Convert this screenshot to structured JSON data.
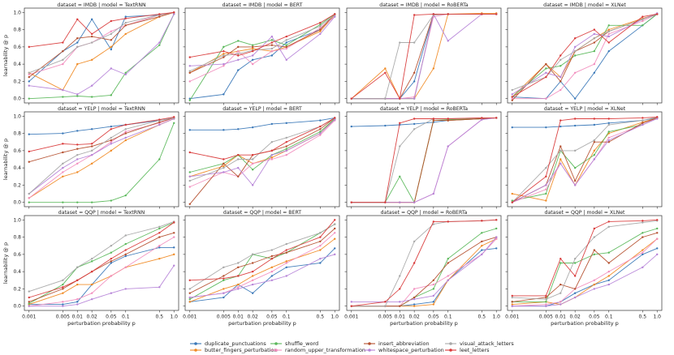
{
  "chart_data": {
    "type": "line",
    "title_template": "dataset = {dataset} | model = {model}",
    "xlabel": "perturbation probability p",
    "ylabel": "learnability @ p",
    "xscale": "log",
    "x": [
      0.001,
      0.005,
      0.01,
      0.02,
      0.05,
      0.1,
      0.5,
      1.0
    ],
    "x_tick_labels": [
      "0.001",
      "0.005",
      "0.01",
      "0.02",
      "0.05",
      "0.1",
      "0.5",
      "1.0"
    ],
    "yticks": [
      0.0,
      0.2,
      0.4,
      0.6,
      0.8,
      1.0
    ],
    "y_tick_labels": [
      "0.0",
      "0.2",
      "0.4",
      "0.6",
      "0.8",
      "1.0"
    ],
    "ylim": [
      -0.05,
      1.05
    ],
    "datasets": [
      "IMDB",
      "YELP",
      "QQP"
    ],
    "models": [
      "TextRNN",
      "BERT",
      "RoBERTa",
      "XLNet"
    ],
    "series_meta": [
      {
        "name": "duplicate_punctuations",
        "color": "#3a78b8"
      },
      {
        "name": "butter_fingers_perturbation",
        "color": "#f08a24"
      },
      {
        "name": "shuffle_word",
        "color": "#5bb85b"
      },
      {
        "name": "random_upper_transformation",
        "color": "#f28fbf"
      },
      {
        "name": "insert_abbreviation",
        "color": "#b5502f"
      },
      {
        "name": "whitespace_perturbation",
        "color": "#b684d8"
      },
      {
        "name": "visual_attack_letters",
        "color": "#a8a8a8"
      },
      {
        "name": "leet_letters",
        "color": "#d93a3a"
      }
    ],
    "panels": [
      {
        "dataset": "IMDB",
        "model": "TextRNN",
        "series": [
          [
            0.2,
            0.55,
            0.65,
            0.92,
            0.57,
            0.95,
            0.97,
            1.0
          ],
          [
            0.3,
            0.1,
            0.4,
            0.45,
            0.6,
            0.75,
            0.95,
            1.0
          ],
          [
            0.0,
            0.02,
            0.03,
            0.02,
            0.04,
            0.3,
            0.62,
            0.98
          ],
          [
            0.28,
            0.4,
            0.6,
            0.65,
            0.78,
            0.85,
            0.97,
            1.0
          ],
          [
            0.25,
            0.55,
            0.7,
            0.72,
            0.68,
            0.85,
            0.95,
            1.0
          ],
          [
            0.15,
            0.1,
            0.05,
            0.15,
            0.35,
            0.28,
            0.65,
            0.98
          ],
          [
            0.3,
            0.45,
            0.6,
            0.65,
            0.75,
            0.88,
            0.97,
            1.0
          ],
          [
            0.6,
            0.65,
            0.92,
            0.75,
            0.9,
            0.93,
            0.98,
            1.0
          ]
        ]
      },
      {
        "dataset": "IMDB",
        "model": "BERT",
        "series": [
          [
            0.0,
            0.05,
            0.33,
            0.45,
            0.5,
            0.65,
            0.8,
            0.98
          ],
          [
            0.3,
            0.52,
            0.55,
            0.58,
            0.55,
            0.6,
            0.78,
            0.97
          ],
          [
            -0.02,
            0.6,
            0.67,
            0.62,
            0.68,
            0.62,
            0.86,
            0.98
          ],
          [
            0.2,
            0.38,
            0.55,
            0.4,
            0.55,
            0.58,
            0.82,
            0.95
          ],
          [
            0.3,
            0.48,
            0.6,
            0.6,
            0.62,
            0.6,
            0.8,
            0.98
          ],
          [
            0.38,
            0.4,
            0.45,
            0.5,
            0.72,
            0.45,
            0.75,
            0.95
          ],
          [
            0.32,
            0.5,
            0.52,
            0.56,
            0.58,
            0.68,
            0.84,
            0.97
          ],
          [
            0.48,
            0.55,
            0.5,
            0.55,
            0.65,
            0.72,
            0.88,
            0.98
          ]
        ]
      },
      {
        "dataset": "IMDB",
        "model": "RoBERTa",
        "series": [
          [
            0.0,
            0.0,
            0.0,
            0.2,
            0.98,
            0.98,
            0.98,
            0.98
          ],
          [
            0.0,
            0.35,
            0.0,
            0.0,
            0.35,
            0.98,
            0.99,
            0.99
          ],
          [
            0.0,
            0.0,
            0.0,
            0.0,
            0.98,
            0.98,
            0.98,
            0.98
          ],
          [
            0.0,
            0.0,
            0.0,
            0.02,
            0.95,
            0.98,
            0.98,
            0.98
          ],
          [
            0.0,
            0.0,
            0.0,
            0.3,
            0.98,
            0.98,
            0.98,
            0.98
          ],
          [
            0.0,
            0.0,
            0.0,
            0.0,
            0.98,
            0.67,
            0.98,
            0.98
          ],
          [
            0.0,
            0.0,
            0.65,
            0.65,
            0.97,
            0.98,
            0.98,
            0.98
          ],
          [
            0.0,
            0.3,
            0.0,
            0.97,
            0.98,
            0.98,
            0.98,
            0.98
          ]
        ]
      },
      {
        "dataset": "IMDB",
        "model": "XLNet",
        "series": [
          [
            0.02,
            0.0,
            0.2,
            0.0,
            0.3,
            0.55,
            0.85,
            0.98
          ],
          [
            0.02,
            0.4,
            0.25,
            0.55,
            0.7,
            0.8,
            0.93,
            0.98
          ],
          [
            0.02,
            0.35,
            0.38,
            0.5,
            0.55,
            0.85,
            0.85,
            0.98
          ],
          [
            0.0,
            0.0,
            0.1,
            0.3,
            0.4,
            0.75,
            0.9,
            0.98
          ],
          [
            -0.02,
            0.4,
            0.2,
            0.55,
            0.65,
            0.78,
            0.92,
            0.98
          ],
          [
            0.05,
            0.3,
            0.25,
            0.6,
            0.75,
            0.72,
            0.92,
            0.99
          ],
          [
            0.1,
            0.25,
            0.45,
            0.55,
            0.7,
            0.78,
            0.92,
            0.98
          ],
          [
            0.02,
            0.25,
            0.5,
            0.7,
            0.8,
            0.65,
            0.95,
            0.98
          ]
        ]
      },
      {
        "dataset": "YELP",
        "model": "TextRNN",
        "series": [
          [
            0.79,
            0.8,
            0.83,
            0.85,
            0.88,
            0.9,
            0.95,
            0.98
          ],
          [
            0.05,
            0.3,
            0.35,
            0.45,
            0.6,
            0.72,
            0.9,
            0.97
          ],
          [
            0.0,
            0.0,
            0.0,
            0.0,
            0.02,
            0.08,
            0.5,
            0.92
          ],
          [
            0.05,
            0.35,
            0.45,
            0.55,
            0.7,
            0.82,
            0.92,
            0.98
          ],
          [
            0.47,
            0.58,
            0.62,
            0.65,
            0.72,
            0.8,
            0.93,
            0.98
          ],
          [
            0.1,
            0.4,
            0.5,
            0.55,
            0.68,
            0.75,
            0.9,
            0.97
          ],
          [
            0.1,
            0.45,
            0.55,
            0.6,
            0.75,
            0.85,
            0.95,
            0.98
          ],
          [
            0.59,
            0.68,
            0.67,
            0.68,
            0.85,
            0.9,
            0.96,
            0.99
          ]
        ]
      },
      {
        "dataset": "YELP",
        "model": "BERT",
        "series": [
          [
            0.84,
            0.84,
            0.85,
            0.87,
            0.91,
            0.92,
            0.95,
            0.98
          ],
          [
            0.3,
            0.42,
            0.55,
            0.45,
            0.52,
            0.6,
            0.8,
            0.97
          ],
          [
            0.35,
            0.45,
            0.55,
            0.38,
            0.55,
            0.62,
            0.82,
            0.97
          ],
          [
            0.18,
            0.35,
            0.3,
            0.45,
            0.5,
            0.55,
            0.78,
            0.95
          ],
          [
            -0.02,
            0.45,
            0.3,
            0.55,
            0.6,
            0.65,
            0.85,
            0.98
          ],
          [
            0.3,
            0.35,
            0.4,
            0.2,
            0.55,
            0.6,
            0.8,
            0.96
          ],
          [
            0.25,
            0.4,
            0.5,
            0.5,
            0.7,
            0.75,
            0.88,
            0.98
          ],
          [
            0.58,
            0.5,
            0.55,
            0.55,
            0.6,
            0.7,
            0.88,
            0.98
          ]
        ]
      },
      {
        "dataset": "YELP",
        "model": "RoBERTa",
        "series": [
          [
            0.88,
            0.89,
            0.9,
            0.91,
            0.93,
            0.95,
            0.97,
            0.98
          ],
          [
            0.0,
            0.0,
            0.0,
            0.0,
            0.95,
            0.95,
            0.97,
            0.98
          ],
          [
            0.0,
            0.0,
            0.3,
            0.0,
            0.95,
            0.96,
            0.97,
            0.98
          ],
          [
            0.0,
            0.0,
            0.0,
            0.0,
            0.1,
            0.65,
            0.96,
            0.98
          ],
          [
            0.0,
            0.0,
            0.0,
            0.0,
            0.95,
            0.95,
            0.97,
            0.98
          ],
          [
            0.0,
            0.0,
            0.0,
            0.0,
            0.1,
            0.65,
            0.96,
            0.98
          ],
          [
            0.0,
            0.0,
            0.65,
            0.85,
            0.97,
            0.97,
            0.98,
            0.98
          ],
          [
            0.0,
            0.0,
            0.92,
            0.97,
            0.97,
            0.97,
            0.98,
            0.98
          ]
        ]
      },
      {
        "dataset": "YELP",
        "model": "XLNet",
        "series": [
          [
            0.87,
            0.87,
            0.88,
            0.89,
            0.9,
            0.92,
            0.95,
            0.98
          ],
          [
            0.1,
            0.02,
            0.5,
            0.2,
            0.6,
            0.8,
            0.93,
            0.98
          ],
          [
            0.02,
            0.1,
            0.6,
            0.4,
            0.55,
            0.82,
            0.9,
            0.98
          ],
          [
            0.0,
            0.15,
            0.45,
            0.2,
            0.5,
            0.75,
            0.9,
            0.98
          ],
          [
            0.0,
            0.2,
            0.65,
            0.25,
            0.7,
            0.7,
            0.92,
            0.98
          ],
          [
            0.0,
            0.2,
            0.45,
            0.2,
            0.5,
            0.72,
            0.9,
            0.97
          ],
          [
            0.0,
            0.4,
            0.6,
            0.6,
            0.72,
            0.9,
            0.95,
            0.99
          ],
          [
            0.0,
            0.3,
            0.95,
            0.97,
            0.97,
            0.97,
            0.98,
            0.99
          ]
        ]
      },
      {
        "dataset": "QQP",
        "model": "TextRNN",
        "series": [
          [
            0.02,
            0.02,
            0.05,
            0.25,
            0.5,
            0.58,
            0.68,
            0.68
          ],
          [
            0.02,
            0.15,
            0.25,
            0.25,
            0.35,
            0.45,
            0.55,
            0.6
          ],
          [
            0.03,
            0.25,
            0.45,
            0.52,
            0.62,
            0.72,
            0.9,
            0.97
          ],
          [
            0.0,
            0.05,
            0.08,
            0.15,
            0.35,
            0.45,
            0.7,
            0.8
          ],
          [
            0.05,
            0.2,
            0.3,
            0.4,
            0.52,
            0.6,
            0.8,
            0.85
          ],
          [
            0.0,
            0.0,
            0.02,
            0.08,
            0.15,
            0.2,
            0.22,
            0.47
          ],
          [
            0.17,
            0.3,
            0.45,
            0.55,
            0.7,
            0.82,
            0.92,
            0.98
          ],
          [
            0.1,
            0.22,
            0.3,
            0.4,
            0.55,
            0.65,
            0.85,
            0.97
          ]
        ]
      },
      {
        "dataset": "QQP",
        "model": "BERT",
        "series": [
          [
            0.05,
            0.1,
            0.25,
            0.15,
            0.35,
            0.45,
            0.5,
            0.67
          ],
          [
            0.05,
            0.2,
            0.25,
            0.35,
            0.45,
            0.52,
            0.65,
            0.78
          ],
          [
            0.08,
            0.3,
            0.35,
            0.6,
            0.55,
            0.62,
            0.85,
            0.95
          ],
          [
            0.1,
            0.15,
            0.22,
            0.3,
            0.4,
            0.5,
            0.7,
            0.85
          ],
          [
            0.15,
            0.35,
            0.45,
            0.5,
            0.58,
            0.62,
            0.75,
            0.9
          ],
          [
            0.1,
            0.15,
            0.2,
            0.25,
            0.3,
            0.35,
            0.55,
            0.6
          ],
          [
            0.2,
            0.45,
            0.5,
            0.6,
            0.65,
            0.72,
            0.85,
            0.95
          ],
          [
            0.3,
            0.32,
            0.35,
            0.4,
            0.55,
            0.65,
            0.8,
            1.0
          ]
        ]
      },
      {
        "dataset": "QQP",
        "model": "RoBERTa",
        "series": [
          [
            0.0,
            0.0,
            0.0,
            0.02,
            0.05,
            0.3,
            0.65,
            0.67
          ],
          [
            0.0,
            0.0,
            0.0,
            0.0,
            0.02,
            0.3,
            0.7,
            0.78
          ],
          [
            0.0,
            0.0,
            0.0,
            0.1,
            0.2,
            0.55,
            0.85,
            0.9
          ],
          [
            0.0,
            0.0,
            0.0,
            0.2,
            0.25,
            0.35,
            0.6,
            0.78
          ],
          [
            0.0,
            0.0,
            0.0,
            0.1,
            0.3,
            0.5,
            0.75,
            0.8
          ],
          [
            0.05,
            0.05,
            0.05,
            0.08,
            0.12,
            0.3,
            0.6,
            0.8
          ],
          [
            0.0,
            0.0,
            0.35,
            0.75,
            0.95,
            0.98,
            0.99,
            1.0
          ],
          [
            0.0,
            0.05,
            0.2,
            0.5,
            0.98,
            0.98,
            0.99,
            1.0
          ]
        ]
      },
      {
        "dataset": "QQP",
        "model": "XLNet",
        "series": [
          [
            0.0,
            0.0,
            0.05,
            0.15,
            0.25,
            0.3,
            0.6,
            0.67
          ],
          [
            0.02,
            0.05,
            0.02,
            0.1,
            0.25,
            0.35,
            0.65,
            0.78
          ],
          [
            0.05,
            0.05,
            0.5,
            0.5,
            0.6,
            0.62,
            0.85,
            0.9
          ],
          [
            0.0,
            0.02,
            0.05,
            0.2,
            0.3,
            0.4,
            0.62,
            0.78
          ],
          [
            0.05,
            0.1,
            0.25,
            0.2,
            0.65,
            0.5,
            0.8,
            0.85
          ],
          [
            0.0,
            0.0,
            0.02,
            0.1,
            0.2,
            0.25,
            0.45,
            0.6
          ],
          [
            0.1,
            0.08,
            0.15,
            0.55,
            0.8,
            0.92,
            0.97,
            0.99
          ],
          [
            0.12,
            0.12,
            0.55,
            0.35,
            0.9,
            0.98,
            0.99,
            1.0
          ]
        ]
      }
    ]
  }
}
